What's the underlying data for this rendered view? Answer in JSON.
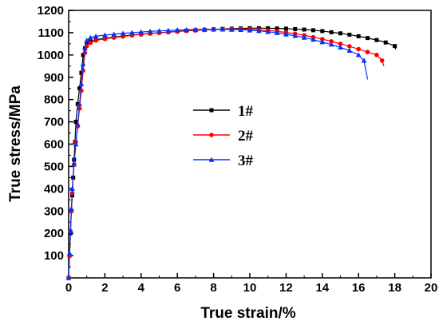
{
  "chart_data": {
    "type": "line",
    "xlabel": "True strain/%",
    "ylabel": "True stress/MPa",
    "xlim": [
      0,
      20
    ],
    "ylim": [
      0,
      1200
    ],
    "x_ticks": [
      0,
      2,
      4,
      6,
      8,
      10,
      12,
      14,
      16,
      18,
      20
    ],
    "y_ticks": [
      100,
      200,
      300,
      400,
      500,
      600,
      700,
      800,
      900,
      1000,
      1100,
      1200
    ],
    "x_tick_labels": [
      "0",
      "2",
      "4",
      "6",
      "8",
      "10",
      "12",
      "14",
      "16",
      "18",
      "20"
    ],
    "y_tick_labels": [
      "100",
      "200",
      "300",
      "400",
      "500",
      "600",
      "700",
      "800",
      "900",
      "1000",
      "1100",
      "1200"
    ],
    "legend_position": "center-left",
    "grid": false,
    "series": [
      {
        "name": "1#",
        "color": "#000000",
        "marker": "square",
        "points": [
          [
            0,
            0
          ],
          [
            0.05,
            100
          ],
          [
            0.1,
            200
          ],
          [
            0.15,
            300
          ],
          [
            0.2,
            370
          ],
          [
            0.25,
            450
          ],
          [
            0.3,
            530
          ],
          [
            0.35,
            610
          ],
          [
            0.4,
            700
          ],
          [
            0.5,
            780
          ],
          [
            0.6,
            850
          ],
          [
            0.7,
            920
          ],
          [
            0.8,
            1000
          ],
          [
            0.9,
            1030
          ],
          [
            1.0,
            1050
          ],
          [
            1.2,
            1060
          ],
          [
            1.5,
            1068
          ],
          [
            2.0,
            1075
          ],
          [
            2.5,
            1080
          ],
          [
            3.0,
            1085
          ],
          [
            3.5,
            1090
          ],
          [
            4.0,
            1093
          ],
          [
            4.5,
            1097
          ],
          [
            5.0,
            1100
          ],
          [
            5.5,
            1103
          ],
          [
            6.0,
            1106
          ],
          [
            6.5,
            1109
          ],
          [
            7.0,
            1111
          ],
          [
            7.5,
            1113
          ],
          [
            8.0,
            1115
          ],
          [
            8.5,
            1117
          ],
          [
            9.0,
            1118
          ],
          [
            9.5,
            1119
          ],
          [
            10.0,
            1120
          ],
          [
            10.5,
            1120
          ],
          [
            11.0,
            1120
          ],
          [
            11.5,
            1119
          ],
          [
            12.0,
            1118
          ],
          [
            12.5,
            1116
          ],
          [
            13.0,
            1114
          ],
          [
            13.5,
            1111
          ],
          [
            14.0,
            1107
          ],
          [
            14.5,
            1102
          ],
          [
            15.0,
            1097
          ],
          [
            15.5,
            1091
          ],
          [
            16.0,
            1084
          ],
          [
            16.5,
            1076
          ],
          [
            17.0,
            1067
          ],
          [
            17.5,
            1056
          ],
          [
            18.0,
            1040
          ],
          [
            18.05,
            1025
          ]
        ]
      },
      {
        "name": "2#",
        "color": "#ff0000",
        "marker": "circle",
        "points": [
          [
            0,
            0
          ],
          [
            0.05,
            100
          ],
          [
            0.1,
            210
          ],
          [
            0.15,
            300
          ],
          [
            0.2,
            380
          ],
          [
            0.3,
            510
          ],
          [
            0.4,
            610
          ],
          [
            0.5,
            680
          ],
          [
            0.6,
            760
          ],
          [
            0.7,
            840
          ],
          [
            0.8,
            930
          ],
          [
            0.9,
            1010
          ],
          [
            1.0,
            1040
          ],
          [
            1.2,
            1055
          ],
          [
            1.5,
            1065
          ],
          [
            2.0,
            1072
          ],
          [
            2.5,
            1078
          ],
          [
            3.0,
            1083
          ],
          [
            3.5,
            1088
          ],
          [
            4.0,
            1092
          ],
          [
            4.5,
            1096
          ],
          [
            5.0,
            1099
          ],
          [
            5.5,
            1102
          ],
          [
            6.0,
            1105
          ],
          [
            6.5,
            1108
          ],
          [
            7.0,
            1110
          ],
          [
            7.5,
            1112
          ],
          [
            8.0,
            1114
          ],
          [
            8.5,
            1115
          ],
          [
            9.0,
            1116
          ],
          [
            9.5,
            1116
          ],
          [
            10.0,
            1115
          ],
          [
            10.5,
            1113
          ],
          [
            11.0,
            1110
          ],
          [
            11.5,
            1106
          ],
          [
            12.0,
            1101
          ],
          [
            12.5,
            1095
          ],
          [
            13.0,
            1088
          ],
          [
            13.5,
            1080
          ],
          [
            14.0,
            1071
          ],
          [
            14.5,
            1061
          ],
          [
            15.0,
            1050
          ],
          [
            15.5,
            1039
          ],
          [
            16.0,
            1026
          ],
          [
            16.5,
            1013
          ],
          [
            17.0,
            1000
          ],
          [
            17.3,
            975
          ],
          [
            17.4,
            950
          ]
        ]
      },
      {
        "name": "3#",
        "color": "#0033ff",
        "marker": "triangle",
        "points": [
          [
            0,
            0
          ],
          [
            0.05,
            110
          ],
          [
            0.1,
            210
          ],
          [
            0.15,
            310
          ],
          [
            0.2,
            400
          ],
          [
            0.3,
            510
          ],
          [
            0.4,
            600
          ],
          [
            0.5,
            690
          ],
          [
            0.6,
            780
          ],
          [
            0.7,
            870
          ],
          [
            0.8,
            960
          ],
          [
            0.9,
            1030
          ],
          [
            1.0,
            1065
          ],
          [
            1.2,
            1078
          ],
          [
            1.5,
            1084
          ],
          [
            2.0,
            1089
          ],
          [
            2.5,
            1093
          ],
          [
            3.0,
            1097
          ],
          [
            3.5,
            1100
          ],
          [
            4.0,
            1103
          ],
          [
            4.5,
            1106
          ],
          [
            5.0,
            1108
          ],
          [
            5.5,
            1110
          ],
          [
            6.0,
            1112
          ],
          [
            6.5,
            1113
          ],
          [
            7.0,
            1114
          ],
          [
            7.5,
            1115
          ],
          [
            8.0,
            1115
          ],
          [
            8.5,
            1115
          ],
          [
            9.0,
            1114
          ],
          [
            9.5,
            1113
          ],
          [
            10.0,
            1111
          ],
          [
            10.5,
            1108
          ],
          [
            11.0,
            1104
          ],
          [
            11.5,
            1099
          ],
          [
            12.0,
            1093
          ],
          [
            12.5,
            1086
          ],
          [
            13.0,
            1078
          ],
          [
            13.5,
            1069
          ],
          [
            14.0,
            1058
          ],
          [
            14.5,
            1047
          ],
          [
            15.0,
            1034
          ],
          [
            15.5,
            1020
          ],
          [
            16.0,
            1000
          ],
          [
            16.3,
            975
          ],
          [
            16.5,
            890
          ]
        ]
      }
    ]
  }
}
